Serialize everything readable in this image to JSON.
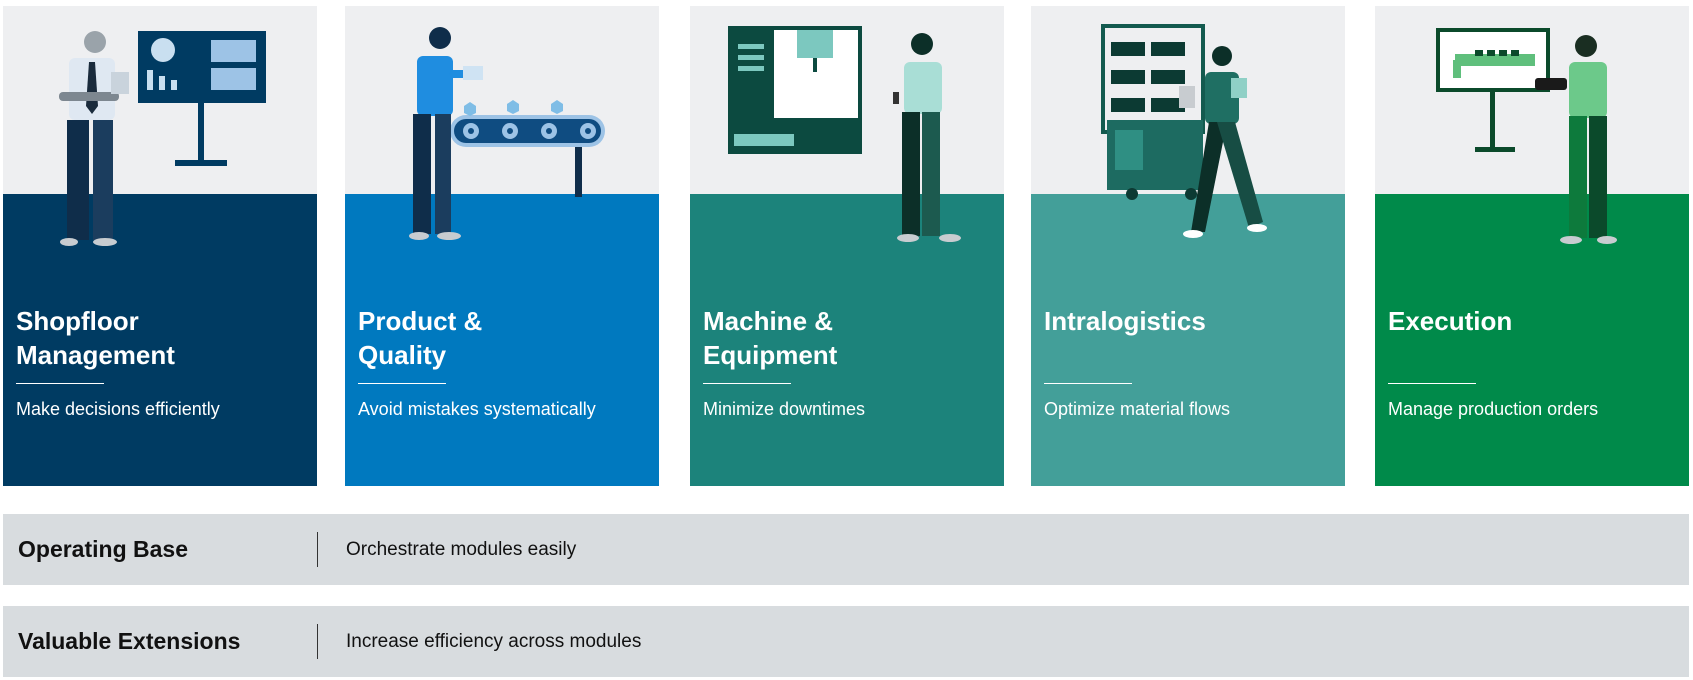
{
  "cards": [
    {
      "title": "Shopfloor\nManagement",
      "subtitle": "Make decisions efficiently",
      "color": "#003b62",
      "illustration": "person-with-dashboard-screen"
    },
    {
      "title": "Product &\nQuality",
      "subtitle": "Avoid mistakes systematically",
      "color": "#0079bf",
      "illustration": "person-at-conveyor-belt"
    },
    {
      "title": "Machine &\nEquipment",
      "subtitle": "Minimize downtimes",
      "color": "#1c837b",
      "illustration": "person-with-machine"
    },
    {
      "title": "Intralogistics",
      "subtitle": "Optimize material flows",
      "color": "#439f99",
      "illustration": "person-with-shelf-cart"
    },
    {
      "title": "Execution",
      "subtitle": "Manage production orders",
      "color": "#008a4a",
      "illustration": "person-with-production-screen"
    }
  ],
  "bands": [
    {
      "label": "Operating Base",
      "description": "Orchestrate modules easily"
    },
    {
      "label": "Valuable Extensions",
      "description": "Increase efficiency across modules"
    }
  ]
}
